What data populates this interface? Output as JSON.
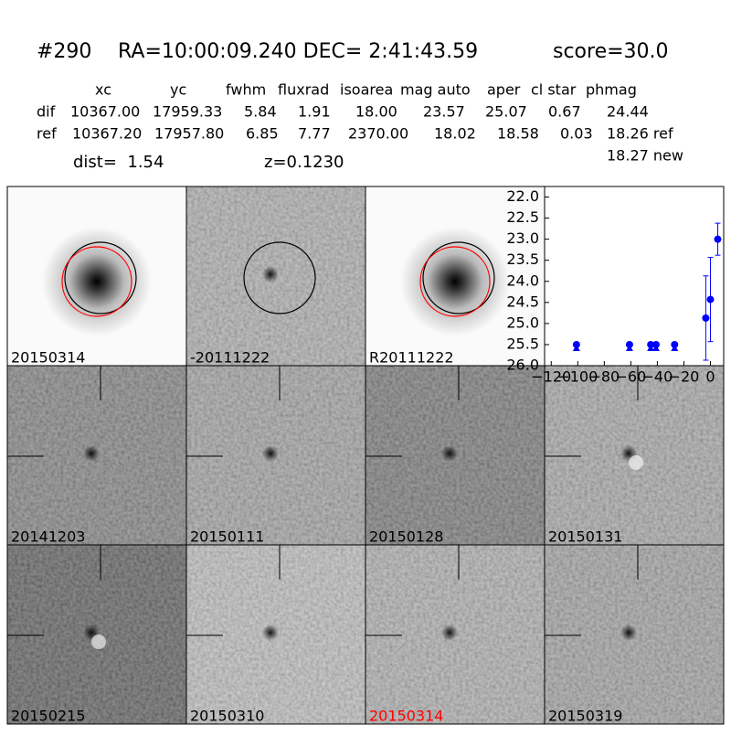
{
  "header": {
    "object": "#290",
    "coords": "RA=10:00:09.240 DEC= 2:41:43.59",
    "score": "score=30.0"
  },
  "table": {
    "columns": [
      "xc",
      "yc",
      "fwhm",
      "fluxrad",
      "isoarea",
      "mag auto",
      "aper",
      "cl star",
      "phmag"
    ],
    "rows": [
      [
        "dif",
        "10367.00",
        "17959.33",
        "5.84",
        "1.91",
        "18.00",
        "23.57",
        "25.07",
        "0.67",
        "24.44"
      ],
      [
        "ref",
        "10367.20",
        "17957.80",
        "6.85",
        "7.77",
        "2370.00",
        "18.02",
        "18.58",
        "0.03",
        "18.26 ref"
      ]
    ],
    "extra": "18.27 new"
  },
  "dist": "dist=  1.54",
  "z": "z=0.1230",
  "panels": [
    {
      "label": "20150314"
    },
    {
      "label": "-20111222"
    },
    {
      "label": "R20111222"
    },
    {
      "label": "20141203"
    },
    {
      "label": "20150111"
    },
    {
      "label": "20150128"
    },
    {
      "label": "20150131"
    },
    {
      "label": "20150215"
    },
    {
      "label": "20150310"
    },
    {
      "label": "20150314",
      "label_color": "#ff0000"
    },
    {
      "label": "20150319"
    }
  ],
  "chart_data": {
    "type": "scatter",
    "xlim": [
      -125,
      10
    ],
    "ylim": [
      26.0,
      21.75
    ],
    "xticks": [
      {
        "value": -120,
        "label": "−120"
      },
      {
        "value": -100,
        "label": "−100"
      },
      {
        "value": -80,
        "label": "−80"
      },
      {
        "value": -60,
        "label": "−60"
      },
      {
        "value": -40,
        "label": "−40"
      },
      {
        "value": -20,
        "label": "−20"
      },
      0
    ],
    "yticks": [
      {
        "value": 22.0,
        "label": "22.0"
      },
      {
        "value": 22.5,
        "label": "22.5"
      },
      {
        "value": 23.0,
        "label": "23.0"
      },
      {
        "value": 23.5,
        "label": "23.5"
      },
      {
        "value": 24.0,
        "label": "24.0"
      },
      {
        "value": 24.5,
        "label": "24.5"
      },
      {
        "value": 25.0,
        "label": "25.0"
      },
      {
        "value": 25.5,
        "label": "25.5"
      },
      {
        "value": 26.0,
        "label": "26.0"
      }
    ],
    "series": [
      {
        "color": "#0000ff",
        "x": [
          -3.5,
          0,
          5.5
        ],
        "values": [
          24.87,
          24.43,
          23.0
        ],
        "errors": [
          1.0,
          1.0,
          0.38
        ]
      },
      {
        "color": "#0000ff",
        "upper_limit": true,
        "x": [
          -101,
          -61,
          -45,
          -41,
          -27
        ],
        "values": [
          25.5,
          25.5,
          25.5,
          25.5,
          25.5
        ]
      }
    ]
  }
}
